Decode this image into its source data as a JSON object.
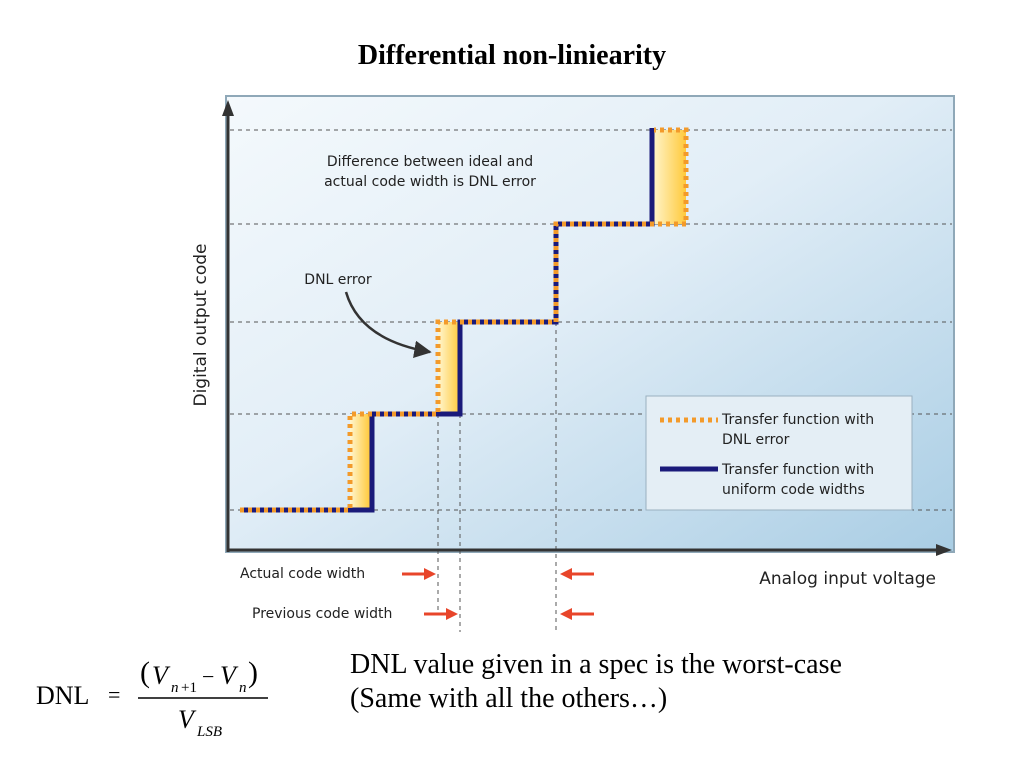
{
  "slide": {
    "title": "Differential non-liniearity"
  },
  "figure": {
    "y_axis_label": "Digital output code",
    "x_axis_label": "Analog input voltage",
    "callout_top_line1": "Difference between ideal and",
    "callout_top_line2": "actual code width is DNL error",
    "callout_arrow_label": "DNL error",
    "legend": {
      "dnl_line1": "Transfer function with",
      "dnl_line2": "DNL error",
      "uniform_line1": "Transfer function with",
      "uniform_line2": "uniform code widths"
    },
    "below_axis": {
      "actual_code_width": "Actual code width",
      "previous_code_width": "Previous code width"
    },
    "colors": {
      "uniform": "#1a1a7a",
      "dnl": "#f39a2a",
      "shade": "#ffd24a",
      "arrow_red": "#e8452a",
      "panel_light": "#eef6fb",
      "panel_dark": "#a9cde4"
    }
  },
  "formula": {
    "lhs": "DNL",
    "equals": "=",
    "numerator": "(V n+1 − V n)",
    "denominator": "V LSB"
  },
  "note": {
    "line1": "DNL value given in a spec is the worst-case",
    "line2": "(Same with all the others…)"
  }
}
